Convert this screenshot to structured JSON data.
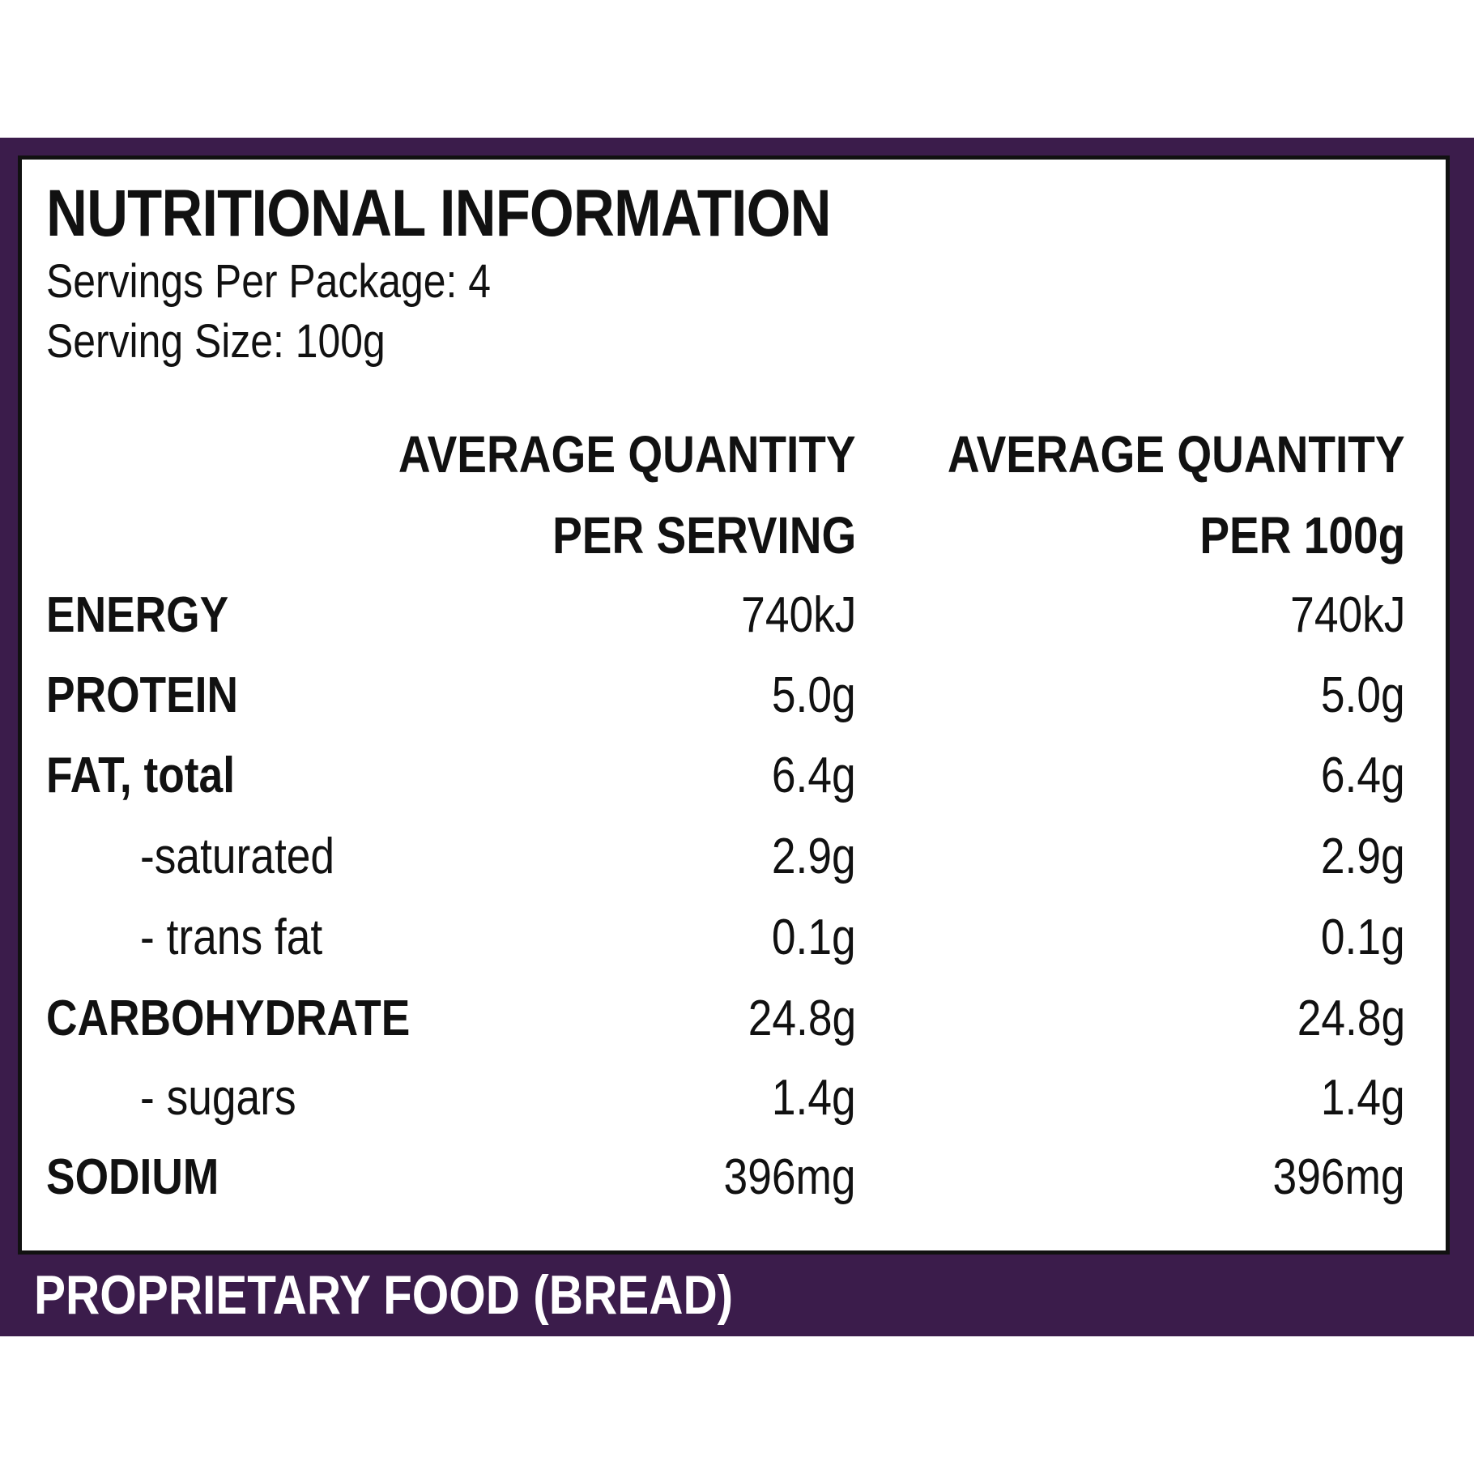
{
  "colors": {
    "panel_purple": "#3b1c4b",
    "text_dark": "#111111",
    "footer_text": "#ffffff"
  },
  "label": {
    "title": "NUTRITIONAL INFORMATION",
    "servings_per_package": "Servings Per Package: 4",
    "serving_size": "Serving Size: 100g",
    "columns": [
      {
        "line1": "AVERAGE QUANTITY",
        "line2": "PER SERVING"
      },
      {
        "line1": "AVERAGE QUANTITY",
        "line2": "PER 100g"
      }
    ],
    "rows": [
      {
        "name": "ENERGY",
        "per_serving": "740kJ",
        "per_100g": "740kJ"
      },
      {
        "name": "PROTEIN",
        "per_serving": "5.0g",
        "per_100g": "5.0g"
      },
      {
        "name": "FAT, total",
        "per_serving": "6.4g",
        "per_100g": "6.4g"
      },
      {
        "name": "-saturated",
        "per_serving": "2.9g",
        "per_100g": "2.9g"
      },
      {
        "name": "- trans fat",
        "per_serving": "0.1g",
        "per_100g": "0.1g"
      },
      {
        "name": "CARBOHYDRATE",
        "per_serving": "24.8g",
        "per_100g": "24.8g"
      },
      {
        "name": "- sugars",
        "per_serving": "1.4g",
        "per_100g": "1.4g"
      },
      {
        "name": "SODIUM",
        "per_serving": "396mg",
        "per_100g": "396mg"
      }
    ],
    "footer": "PROPRIETARY FOOD (BREAD)"
  }
}
